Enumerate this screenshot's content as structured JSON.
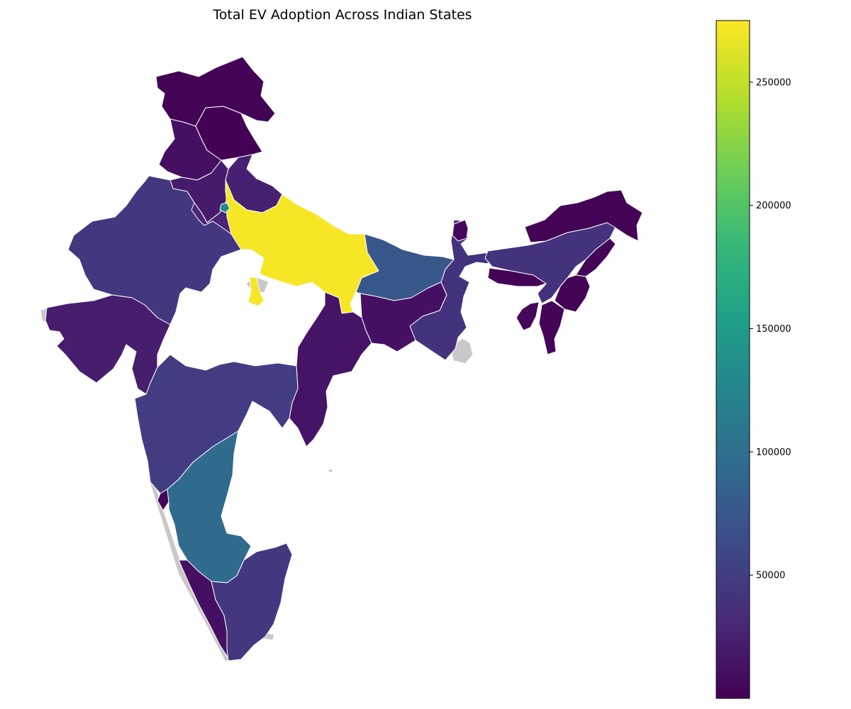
{
  "title": "Total EV Adoption Across Indian States",
  "colorbar": {
    "colormap": "viridis",
    "min": 0,
    "max": 275000,
    "ticks": [
      {
        "value": 50000,
        "label": "50000"
      },
      {
        "value": 100000,
        "label": "100000"
      },
      {
        "value": 150000,
        "label": "150000"
      },
      {
        "value": 200000,
        "label": "200000"
      },
      {
        "value": 250000,
        "label": "250000"
      }
    ],
    "colors": [
      "#440154",
      "#482878",
      "#3e4989",
      "#31688e",
      "#26828e",
      "#1f9e89",
      "#35b779",
      "#6ece58",
      "#b5de2b",
      "#fde725"
    ]
  },
  "nodata_color": "#c8c8c8",
  "border_color": "#ffffff",
  "regions": [
    {
      "id": "jammu-kashmir",
      "value": 2000
    },
    {
      "id": "ladakh",
      "value": 1000
    },
    {
      "id": "himachal-pradesh",
      "value": 12000
    },
    {
      "id": "punjab",
      "value": 20000
    },
    {
      "id": "uttarakhand",
      "value": 25000
    },
    {
      "id": "haryana",
      "value": 28000
    },
    {
      "id": "delhi",
      "value": 130000
    },
    {
      "id": "rajasthan",
      "value": 45000
    },
    {
      "id": "uttar-pradesh",
      "value": 272000
    },
    {
      "id": "bihar",
      "value": 75000
    },
    {
      "id": "gujarat",
      "value": 22000
    },
    {
      "id": "maharashtra",
      "value": 50000
    },
    {
      "id": "karnataka",
      "value": 95000
    },
    {
      "id": "tamil-nadu",
      "value": 45000
    },
    {
      "id": "kerala",
      "value": 12000
    },
    {
      "id": "goa",
      "value": 3000
    },
    {
      "id": "chhattisgarh",
      "value": 15000
    },
    {
      "id": "jharkhand",
      "value": 12000
    },
    {
      "id": "west-bengal",
      "value": 40000
    },
    {
      "id": "sikkim",
      "value": 5000
    },
    {
      "id": "assam",
      "value": 40000
    },
    {
      "id": "arunachal-pradesh",
      "value": 2000
    },
    {
      "id": "nagaland",
      "value": 3000
    },
    {
      "id": "meghalaya",
      "value": 2000
    },
    {
      "id": "manipur",
      "value": 2000
    },
    {
      "id": "tripura",
      "value": 5000
    },
    {
      "id": "mizoram",
      "value": 3000
    }
  ]
}
